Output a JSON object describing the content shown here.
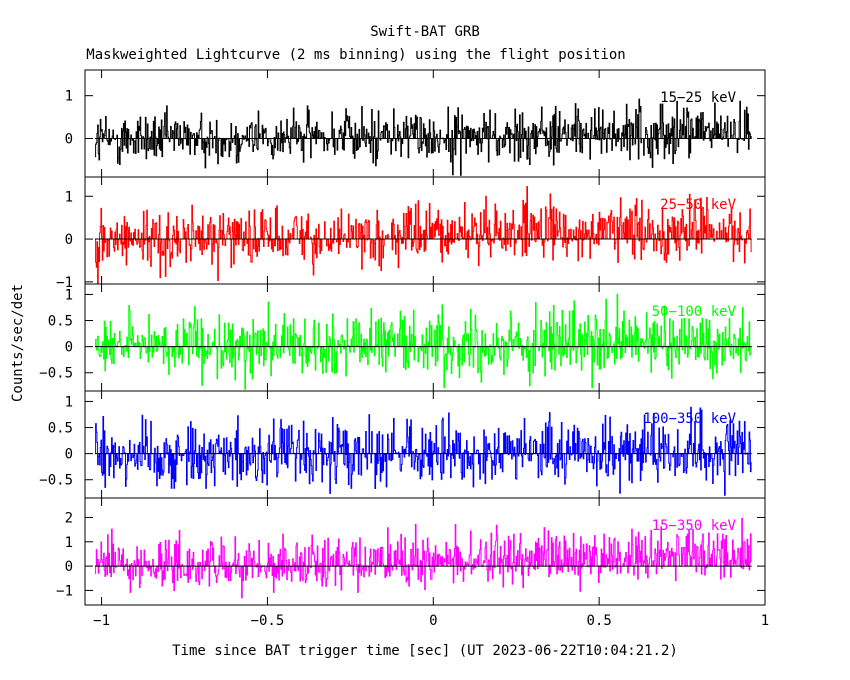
{
  "chart_data": {
    "type": "line",
    "title": "Swift-BAT GRB",
    "subtitle": "Maskweighted Lightcurve (2 ms binning) using the flight position",
    "xlabel": "Time since BAT trigger time [sec] (UT 2023-06-22T10:04:21.2)",
    "ylabel": "Counts/sec/det",
    "xlim": [
      -1.05,
      1.0
    ],
    "xticks": [
      -1,
      -0.5,
      0,
      0.5,
      1
    ],
    "xtick_labels": [
      "−1",
      "−0.5",
      "0",
      "0.5",
      "1"
    ],
    "bin_size_sec": 0.002,
    "time_range": [
      -1.02,
      0.96
    ],
    "panels": [
      {
        "name": "15-25 keV",
        "label": "15−25 keV",
        "color": "#000000",
        "ylim": [
          -0.9,
          1.6
        ],
        "yticks": [
          0,
          1
        ],
        "ytick_labels": [
          "0",
          "1"
        ],
        "noise_amplitude": 0.45,
        "trend": [
          0.0,
          0.15
        ]
      },
      {
        "name": "25-50 keV",
        "label": "25−50 keV",
        "color": "#ff0000",
        "ylim": [
          -1.05,
          1.45
        ],
        "yticks": [
          -1,
          0,
          1
        ],
        "ytick_labels": [
          "−1",
          "0",
          "1"
        ],
        "noise_amplitude": 0.5,
        "trend": [
          0.0,
          0.25
        ]
      },
      {
        "name": "50-100 keV",
        "label": "50−100 keV",
        "color": "#00ff00",
        "ylim": [
          -0.85,
          1.2
        ],
        "yticks": [
          -0.5,
          0,
          0.5,
          1
        ],
        "ytick_labels": [
          "−0.5",
          "0",
          "0.5",
          "1"
        ],
        "noise_amplitude": 0.45,
        "trend": [
          0.0,
          0.1
        ]
      },
      {
        "name": "100-350 keV",
        "label": "100−350 keV",
        "color": "#0000ff",
        "ylim": [
          -0.85,
          1.2
        ],
        "yticks": [
          -0.5,
          0,
          0.5,
          1
        ],
        "ytick_labels": [
          "−0.5",
          "0",
          "0.5",
          "1"
        ],
        "noise_amplitude": 0.45,
        "trend": [
          0.0,
          0.05
        ]
      },
      {
        "name": "15-350 keV",
        "label": "15−350 keV",
        "color": "#ff00ff",
        "ylim": [
          -1.6,
          2.8
        ],
        "yticks": [
          -1,
          0,
          1,
          2
        ],
        "ytick_labels": [
          "−1",
          "0",
          "1",
          "2"
        ],
        "noise_amplitude": 0.75,
        "trend": [
          0.0,
          0.55
        ]
      }
    ]
  }
}
